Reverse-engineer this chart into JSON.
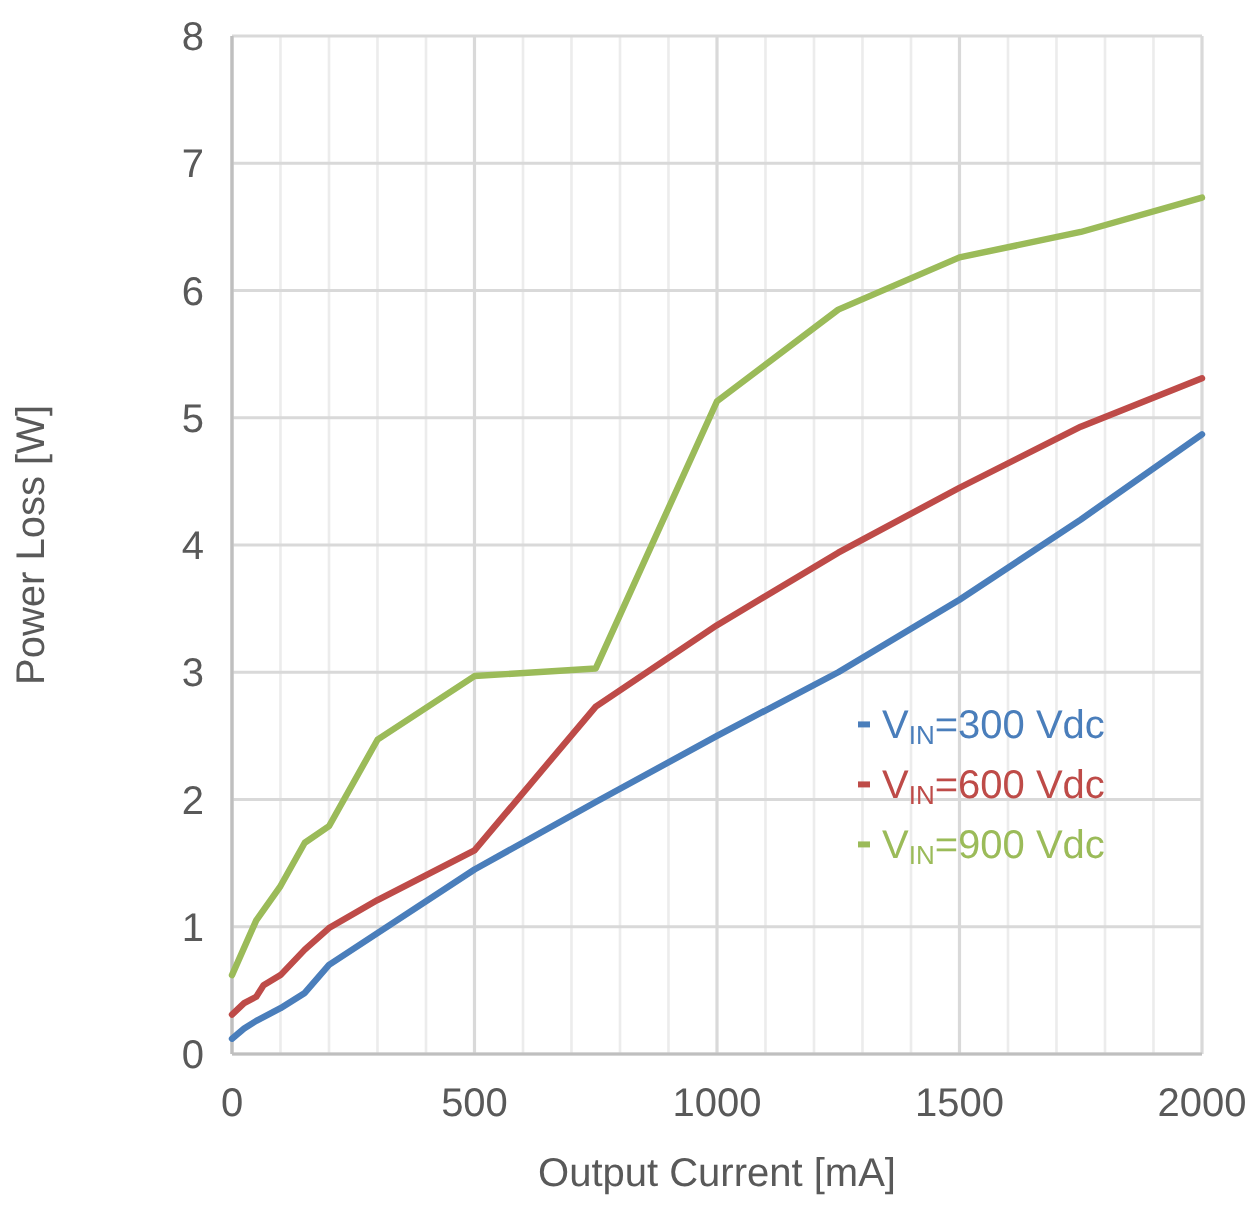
{
  "chart_data": {
    "type": "line",
    "xlabel": "Output Current [mA]",
    "ylabel": "Power Loss [W]",
    "xlim": [
      0,
      2000
    ],
    "ylim": [
      0,
      8
    ],
    "xticks": [
      0,
      {
        "value": 100,
        "label": null
      },
      {
        "value": 200,
        "label": null
      },
      {
        "value": 300,
        "label": null
      },
      {
        "value": 400,
        "label": null
      },
      500,
      {
        "value": 600,
        "label": null
      },
      {
        "value": 700,
        "label": null
      },
      {
        "value": 800,
        "label": null
      },
      {
        "value": 900,
        "label": null
      },
      1000,
      {
        "value": 1100,
        "label": null
      },
      {
        "value": 1200,
        "label": null
      },
      {
        "value": 1300,
        "label": null
      },
      {
        "value": 1400,
        "label": null
      },
      1500,
      {
        "value": 1600,
        "label": null
      },
      {
        "value": 1700,
        "label": null
      },
      {
        "value": 1800,
        "label": null
      },
      {
        "value": 1900,
        "label": null
      },
      2000
    ],
    "yticks": [
      0,
      1,
      2,
      3,
      4,
      5,
      6,
      7,
      8
    ],
    "grid": true,
    "legend": "right",
    "marker": "none",
    "line_style": "solid",
    "series": [
      {
        "name": "V$_{IN}$=300 Vdc",
        "color": "#4a7ebb",
        "x": [
          0,
          25,
          50,
          100,
          150,
          200,
          500,
          750,
          1000,
          1250,
          1500,
          1750,
          2000
        ],
        "values": [
          0.12,
          0.2,
          0.26,
          0.36,
          0.48,
          0.7,
          1.45,
          1.98,
          2.5,
          3.0,
          3.57,
          4.2,
          4.87
        ]
      },
      {
        "name": "V$_{IN}$=600 Vdc",
        "color": "#be4b48",
        "x": [
          0,
          25,
          50,
          65,
          100,
          150,
          200,
          300,
          500,
          750,
          1000,
          1250,
          1500,
          1750,
          2000
        ],
        "values": [
          0.31,
          0.4,
          0.45,
          0.54,
          0.62,
          0.82,
          0.99,
          1.21,
          1.6,
          2.73,
          3.37,
          3.94,
          4.45,
          4.93,
          5.31
        ]
      },
      {
        "name": "V$_{IN}$=900 Vdc",
        "color": "#9bbb59",
        "x": [
          0,
          50,
          100,
          150,
          200,
          300,
          500,
          750,
          1000,
          1250,
          1500,
          1750,
          2000
        ],
        "values": [
          0.62,
          1.05,
          1.32,
          1.66,
          1.79,
          2.47,
          2.97,
          3.03,
          5.13,
          5.85,
          6.26,
          6.46,
          6.73
        ]
      }
    ]
  }
}
